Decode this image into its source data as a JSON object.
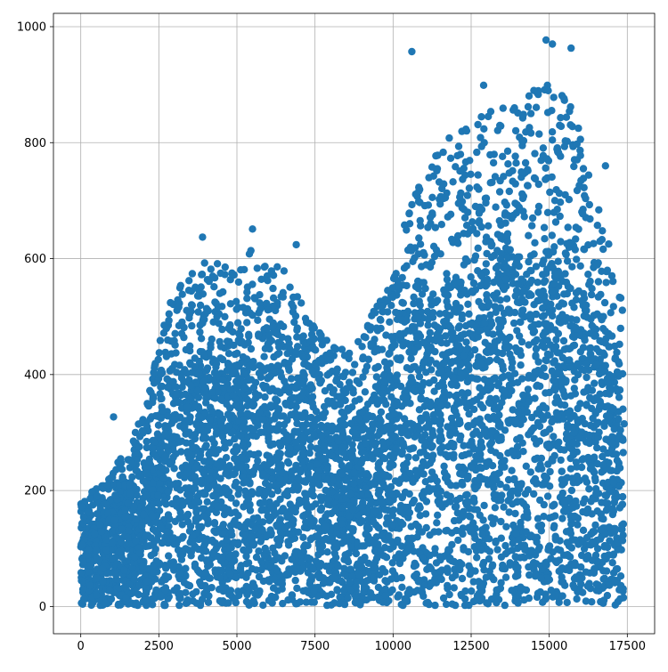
{
  "chart_data": {
    "type": "scatter",
    "title": "",
    "xlabel": "",
    "ylabel": "",
    "xlim": [
      -875,
      18375
    ],
    "ylim": [
      -47,
      1023
    ],
    "xticks": [
      0,
      2500,
      5000,
      7500,
      10000,
      12500,
      15000,
      17500
    ],
    "yticks": [
      0,
      200,
      400,
      600,
      800,
      1000
    ],
    "xtick_labels": [
      "0",
      "2500",
      "5000",
      "7500",
      "10000",
      "12500",
      "15000",
      "17500"
    ],
    "ytick_labels": [
      "0",
      "200",
      "400",
      "600",
      "800",
      "1000"
    ],
    "grid": true,
    "marker_color": "#1f77b4",
    "point_count_approx": 17379,
    "density_profile": {
      "x_range": [
        0,
        17379
      ],
      "upper_envelope": [
        [
          0,
          180
        ],
        [
          1000,
          230
        ],
        [
          2000,
          330
        ],
        [
          2500,
          450
        ],
        [
          3000,
          560
        ],
        [
          4000,
          600
        ],
        [
          5000,
          580
        ],
        [
          5500,
          620
        ],
        [
          6500,
          580
        ],
        [
          7500,
          480
        ],
        [
          8500,
          440
        ],
        [
          9500,
          520
        ],
        [
          10000,
          560
        ],
        [
          10500,
          700
        ],
        [
          11000,
          760
        ],
        [
          12000,
          820
        ],
        [
          13000,
          860
        ],
        [
          14000,
          860
        ],
        [
          15000,
          930
        ],
        [
          15700,
          880
        ],
        [
          16500,
          700
        ],
        [
          17300,
          560
        ]
      ],
      "bulk_ceiling": [
        [
          0,
          120
        ],
        [
          1000,
          180
        ],
        [
          2000,
          240
        ],
        [
          2500,
          320
        ],
        [
          3000,
          420
        ],
        [
          5000,
          430
        ],
        [
          7000,
          420
        ],
        [
          8000,
          300
        ],
        [
          9000,
          330
        ],
        [
          10000,
          430
        ],
        [
          10500,
          500
        ],
        [
          12000,
          560
        ],
        [
          14000,
          600
        ],
        [
          15500,
          620
        ],
        [
          16500,
          480
        ],
        [
          17300,
          360
        ]
      ]
    },
    "outliers": [
      {
        "x": 1050,
        "y": 327
      },
      {
        "x": 3900,
        "y": 637
      },
      {
        "x": 5500,
        "y": 651
      },
      {
        "x": 6900,
        "y": 624
      },
      {
        "x": 10600,
        "y": 957
      },
      {
        "x": 12900,
        "y": 899
      },
      {
        "x": 14900,
        "y": 977
      },
      {
        "x": 15100,
        "y": 970
      },
      {
        "x": 15700,
        "y": 963
      },
      {
        "x": 16800,
        "y": 760
      },
      {
        "x": 17400,
        "y": 315
      }
    ]
  }
}
